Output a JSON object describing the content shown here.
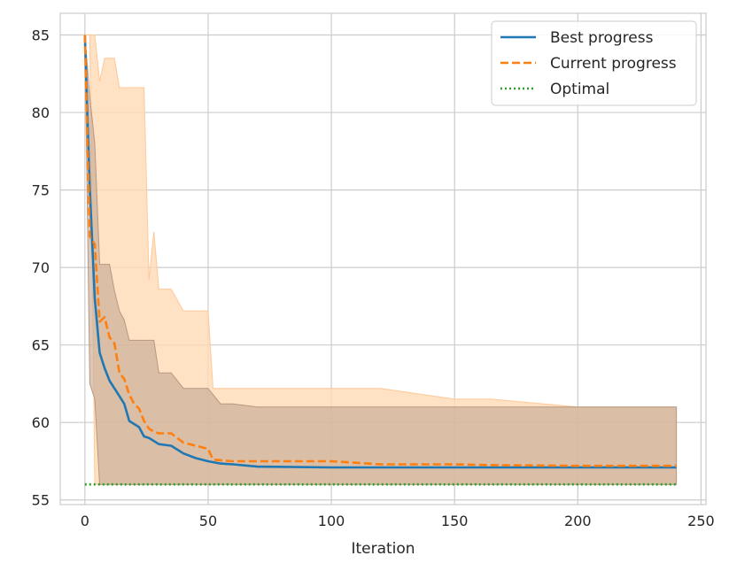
{
  "chart_data": {
    "type": "line",
    "title": "",
    "xlabel": "Iteration",
    "ylabel": "",
    "xlim": [
      -10,
      252
    ],
    "ylim": [
      54.7,
      86.4
    ],
    "x_ticks": [
      0,
      50,
      100,
      150,
      200,
      250
    ],
    "y_ticks": [
      55,
      60,
      65,
      70,
      75,
      80,
      85
    ],
    "grid": true,
    "legend_position": "top-right",
    "colors": {
      "best": "#1f77b4",
      "current": "#ff7f0e",
      "optimal": "#2ca02c",
      "band_best": "#c7ab96",
      "band_current": "#ffd9b5",
      "grid": "#cccccc",
      "spine": "#cccccc",
      "text": "#262626"
    },
    "series": [
      {
        "name": "Best progress",
        "style": "solid",
        "x": [
          0,
          2,
          4,
          6,
          8,
          10,
          12,
          14,
          16,
          18,
          20,
          22,
          24,
          26,
          28,
          30,
          35,
          40,
          45,
          50,
          55,
          60,
          70,
          100,
          150,
          200,
          240
        ],
        "y": [
          85,
          75,
          68,
          64.5,
          63.5,
          62.7,
          62.2,
          61.7,
          61.2,
          60.1,
          59.9,
          59.7,
          59.1,
          59.0,
          58.8,
          58.6,
          58.5,
          58.0,
          57.7,
          57.5,
          57.35,
          57.3,
          57.15,
          57.1,
          57.1,
          57.1,
          57.1
        ],
        "band_upper": [
          85,
          81,
          78,
          70.2,
          70.2,
          70.2,
          68.5,
          67.2,
          66.6,
          65.3,
          65.3,
          65.3,
          65.3,
          65.3,
          65.3,
          63.2,
          63.2,
          62.2,
          62.2,
          62.2,
          61.2,
          61.2,
          61.0,
          61.0,
          61.0,
          61.0,
          61.0
        ],
        "band_lower": [
          85,
          62.5,
          61.5,
          56,
          56,
          56,
          56,
          56,
          56,
          56,
          56,
          56,
          56,
          56,
          56,
          56,
          56,
          56,
          56,
          56,
          56,
          56,
          56,
          56,
          56,
          56,
          56
        ]
      },
      {
        "name": "Current progress",
        "style": "dashed",
        "x": [
          0,
          2,
          4,
          6,
          8,
          10,
          12,
          14,
          16,
          18,
          20,
          22,
          24,
          26,
          28,
          30,
          35,
          40,
          45,
          50,
          52,
          60,
          80,
          100,
          110,
          120,
          150,
          165,
          200,
          240
        ],
        "y": [
          85,
          72,
          71.5,
          66.5,
          66.8,
          65.5,
          65.1,
          63.2,
          62.8,
          61.8,
          61.2,
          60.9,
          60.1,
          59.6,
          59.4,
          59.3,
          59.3,
          58.7,
          58.5,
          58.3,
          57.6,
          57.5,
          57.5,
          57.5,
          57.4,
          57.3,
          57.3,
          57.25,
          57.2,
          57.2
        ],
        "band_upper": [
          85,
          85,
          85,
          82,
          83.5,
          83.5,
          83.5,
          81.6,
          81.6,
          81.6,
          81.6,
          81.6,
          81.6,
          69.2,
          72.3,
          68.6,
          68.6,
          67.2,
          67.2,
          67.2,
          62.2,
          62.2,
          62.2,
          62.2,
          62.2,
          62.2,
          61.5,
          61.5,
          61.0,
          61.0
        ],
        "band_lower": [
          85,
          85,
          56,
          56,
          56,
          56,
          56,
          56,
          56,
          56,
          56,
          56,
          56,
          56,
          56,
          56,
          56,
          56,
          56,
          56,
          56,
          56,
          56,
          56,
          56,
          56,
          56,
          56,
          56,
          56
        ]
      },
      {
        "name": "Optimal",
        "style": "dotted",
        "x": [
          0,
          240
        ],
        "y": [
          56,
          56
        ]
      }
    ]
  }
}
